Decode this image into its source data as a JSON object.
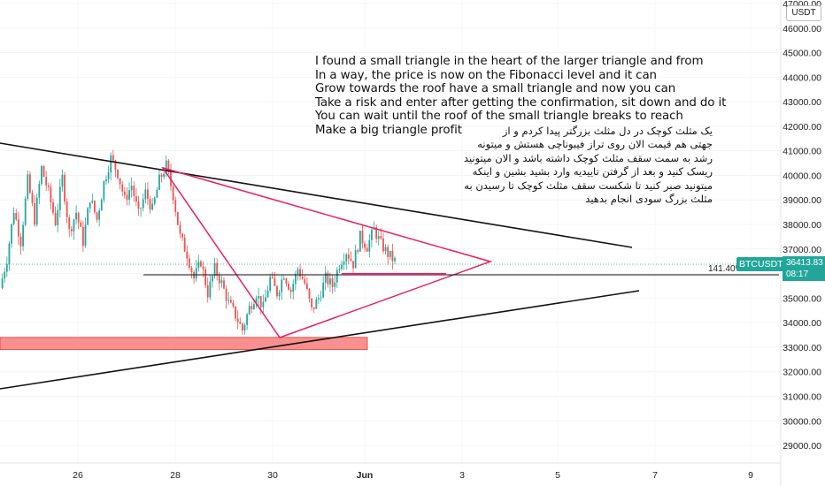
{
  "chart_data": {
    "type": "candlestick",
    "symbol": "BTCUSDT",
    "quote_currency": "USDT",
    "current_price": "36413.83",
    "countdown": "08:17",
    "y_ticks": [
      "47000.00",
      "46000.00",
      "45000.00",
      "44000.00",
      "43000.00",
      "42000.00",
      "41000.00",
      "40000.00",
      "39000.00",
      "38000.00",
      "37000.00",
      "36000.00",
      "35000.00",
      "34000.00",
      "33000.00",
      "32000.00",
      "31000.00",
      "30000.00",
      "29000.00"
    ],
    "y_range": [
      28200,
      47000
    ],
    "x_ticks": [
      "26",
      "28",
      "30",
      "Jun",
      "3",
      "5",
      "7",
      "9"
    ],
    "fib_level_label": "141.40%",
    "fib_level_price": 35900,
    "support_zone": [
      32900,
      33400
    ],
    "price_path": [
      [
        0,
        35400
      ],
      [
        3,
        36600
      ],
      [
        6,
        38600
      ],
      [
        9,
        37300
      ],
      [
        12,
        39800
      ],
      [
        15,
        38200
      ],
      [
        18,
        40300
      ],
      [
        21,
        39300
      ],
      [
        24,
        38100
      ],
      [
        27,
        39900
      ],
      [
        30,
        37700
      ],
      [
        33,
        38500
      ],
      [
        36,
        37300
      ],
      [
        39,
        39100
      ],
      [
        42,
        38200
      ],
      [
        45,
        39700
      ],
      [
        48,
        40700
      ],
      [
        51,
        40100
      ],
      [
        54,
        39000
      ],
      [
        57,
        39600
      ],
      [
        60,
        38400
      ],
      [
        63,
        39300
      ],
      [
        66,
        38600
      ],
      [
        69,
        39800
      ],
      [
        72,
        40400
      ],
      [
        75,
        39200
      ],
      [
        78,
        37500
      ],
      [
        81,
        36800
      ],
      [
        84,
        35800
      ],
      [
        87,
        36500
      ],
      [
        90,
        35200
      ],
      [
        93,
        36200
      ],
      [
        96,
        35600
      ],
      [
        99,
        34800
      ],
      [
        102,
        34300
      ],
      [
        105,
        33700
      ],
      [
        108,
        34600
      ],
      [
        111,
        35200
      ],
      [
        114,
        34600
      ],
      [
        117,
        35800
      ],
      [
        120,
        35200
      ],
      [
        123,
        36000
      ],
      [
        126,
        35300
      ],
      [
        129,
        36200
      ],
      [
        132,
        35600
      ],
      [
        135,
        34500
      ],
      [
        138,
        35000
      ],
      [
        141,
        35800
      ],
      [
        144,
        35500
      ],
      [
        147,
        36400
      ],
      [
        150,
        36900
      ],
      [
        153,
        36400
      ],
      [
        156,
        37500
      ],
      [
        159,
        37100
      ],
      [
        162,
        37800
      ],
      [
        165,
        37200
      ],
      [
        168,
        36800
      ],
      [
        171,
        36500
      ]
    ],
    "annotation_en": "I found a small triangle in the heart of the larger triangle and from\nIn a way, the price is now on the Fibonacci level and it can\nGrow towards the roof have a small triangle and now you can\nTake a risk and enter after getting the confirmation, sit down and do it\nYou can wait until the roof of the small triangle breaks to reach\nMake a big triangle profit",
    "annotation_fa": "یک مثلث کوچک در دل مثلث بزرگتر پیدا کردم و از\nجهتی هم قیمت الان روی تراز فیبوناچی هستش و میتونه\nرشد به سمت سقف مثلث کوچک داشته باشد و الان میتونید\nریسک کنید و بعد از گرفتن تاییدیه وارد بشید بشین و اینکه\nمیتونید صبر کنید تا شکست سقف مثلث کوچک تا رسیدن به\nمثلث بزرگ سودی انجام بدهید",
    "colors": {
      "up": "#26a69a",
      "down": "#ef5350",
      "trend": "#111111",
      "small_triangle": "#e91e63",
      "zone": "#f77c7c",
      "label": "#22a69a"
    }
  }
}
